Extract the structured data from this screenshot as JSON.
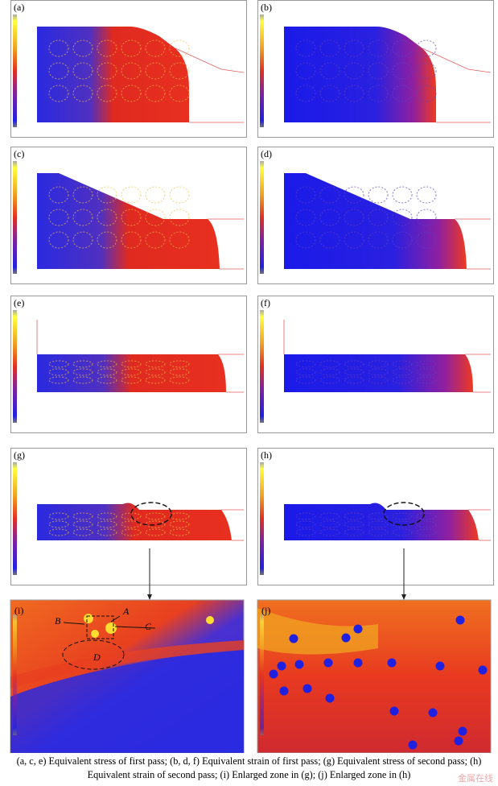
{
  "panels": [
    {
      "label": "(a)"
    },
    {
      "label": "(b)"
    },
    {
      "label": "(c)"
    },
    {
      "label": "(d)"
    },
    {
      "label": "(e)"
    },
    {
      "label": "(f)"
    },
    {
      "label": "(g)"
    },
    {
      "label": "(h)"
    },
    {
      "label": "(i)"
    },
    {
      "label": "(j)"
    }
  ],
  "annotations": [
    "A",
    "B",
    "C",
    "D"
  ],
  "caption": "(a, c, e) Equivalent stress of first pass; (b, d, f) Equivalent strain of first pass; (g) Equivalent stress of second pass; (h) Equivalent strain of second pass; (i) Enlarged zone in (g); (j) Enlarged zone in (h)",
  "watermark": "金属在线"
}
